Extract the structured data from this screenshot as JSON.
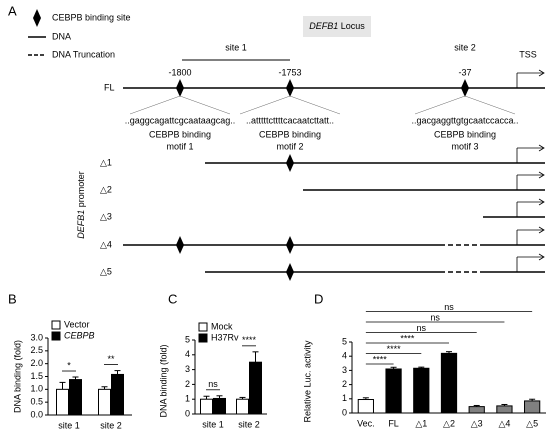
{
  "panel_a": {
    "label": "A",
    "legend": [
      "CEBPB binding site",
      "DNA",
      "DNA Truncation"
    ],
    "locus_title": {
      "gene": "DEFB1",
      "text": "Locus"
    },
    "sites": [
      "site 1",
      "site 2"
    ],
    "tss": "TSS",
    "positions": [
      "-1800",
      "-1753",
      "-37"
    ],
    "full_length": "FL",
    "sequences": [
      "..gaggcagattcgcaataagcag..",
      "..atttttcttttcacaatcttatt..",
      "..gacgaggttgtgcaatccacca.."
    ],
    "motifs": [
      [
        "CEBPB binding",
        "motif 1"
      ],
      [
        "CEBPB binding",
        "motif 2"
      ],
      [
        "CEBPB binding",
        "motif 3"
      ]
    ],
    "truncations": [
      "△1",
      "△2",
      "△3",
      "△4",
      "△5"
    ],
    "axis_label": {
      "gene": "DEFB1",
      "text": "promoter"
    }
  },
  "chart_data": [
    {
      "type": "bar",
      "label": "B",
      "ylabel": "DNA binding (fold)",
      "categories": [
        "site 1",
        "site 2"
      ],
      "ylim": [
        0,
        3
      ],
      "yticks": [
        {
          "value": 0,
          "label": "0.0"
        },
        {
          "value": 0.5,
          "label": "0.5"
        },
        {
          "value": 1,
          "label": "1.0"
        },
        {
          "value": 1.5,
          "label": "1.5"
        },
        {
          "value": 2,
          "label": "2.0"
        },
        {
          "value": 2.5,
          "label": "2.5"
        },
        {
          "value": 3,
          "label": "3.0"
        }
      ],
      "series": [
        {
          "name": "Vector",
          "color": "#ffffff",
          "values": [
            1.0,
            1.0
          ],
          "errors": [
            0.27,
            0.1
          ]
        },
        {
          "name": "CEBPB",
          "color": "#000000",
          "values": [
            1.38,
            1.58
          ],
          "errors": [
            0.1,
            0.15
          ]
        }
      ],
      "significance": [
        "*",
        "**"
      ]
    },
    {
      "type": "bar",
      "label": "C",
      "ylabel": "DNA binding (fold)",
      "categories": [
        "site 1",
        "site 2"
      ],
      "ylim": [
        0,
        5
      ],
      "yticks": [
        0,
        1,
        2,
        3,
        4,
        5
      ],
      "series": [
        {
          "name": "Mock",
          "color": "#ffffff",
          "values": [
            1.0,
            1.0
          ],
          "errors": [
            0.2,
            0.12
          ]
        },
        {
          "name": "H37Rv",
          "color": "#000000",
          "values": [
            1.05,
            3.5
          ],
          "errors": [
            0.18,
            0.7
          ]
        }
      ],
      "significance": [
        "ns",
        "****"
      ]
    },
    {
      "type": "bar",
      "label": "D",
      "ylabel": "Relative Luc. activity",
      "categories": [
        "Vec.",
        "FL",
        "△1",
        "△2",
        "△3",
        "△4",
        "△5"
      ],
      "ylim": [
        0,
        5
      ],
      "yticks": [
        0,
        1,
        2,
        3,
        4,
        5
      ],
      "values": [
        0.95,
        3.1,
        3.15,
        4.2,
        0.45,
        0.5,
        0.85
      ],
      "errors": [
        0.12,
        0.12,
        0.08,
        0.12,
        0.08,
        0.1,
        0.12
      ],
      "colors": [
        "#ffffff",
        "#000000",
        "#000000",
        "#000000",
        "#808080",
        "#808080",
        "#808080"
      ],
      "comparisons": [
        {
          "pair": [
            0,
            1
          ],
          "label": "****"
        },
        {
          "pair": [
            0,
            2
          ],
          "label": "****"
        },
        {
          "pair": [
            0,
            3
          ],
          "label": "****"
        },
        {
          "pair": [
            0,
            4
          ],
          "label": "ns"
        },
        {
          "pair": [
            0,
            5
          ],
          "label": "ns"
        },
        {
          "pair": [
            0,
            6
          ],
          "label": "ns"
        }
      ]
    }
  ]
}
